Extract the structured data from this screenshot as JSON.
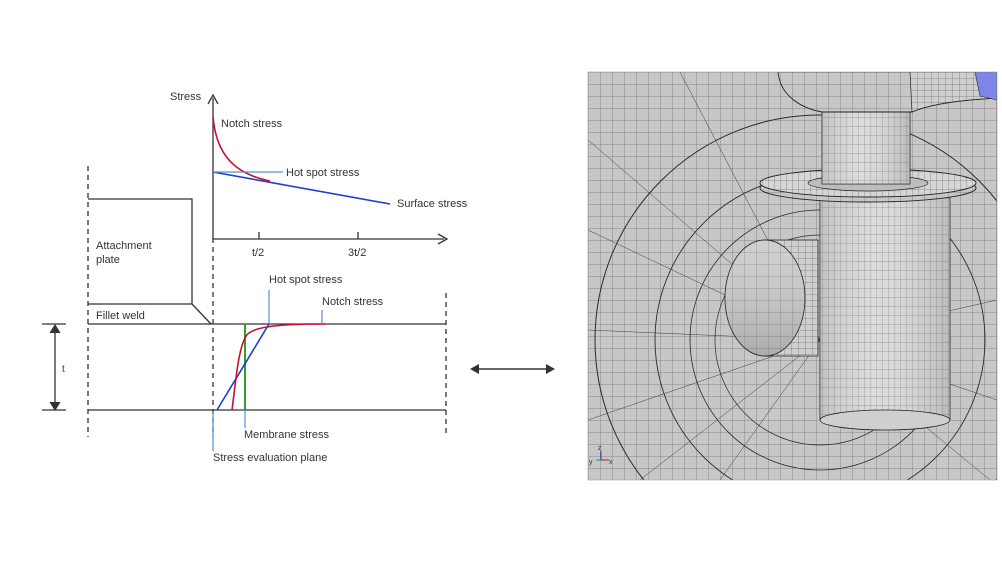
{
  "colors": {
    "notch": "#c8102e",
    "surface": "#1f3fd1",
    "hotspot_leader": "#5a8fd0",
    "membrane": "#2ea12e",
    "mesh_bg": "#c9c9c9",
    "mesh_line": "#3a3a3a"
  },
  "left_diagram": {
    "y_axis_label": "Stress",
    "curve_labels": {
      "notch_top": "Notch stress",
      "hot_spot_top": "Hot spot stress",
      "surface": "Surface stress",
      "hot_spot_bottom": "Hot spot stress",
      "notch_bottom": "Notch stress",
      "membrane": "Membrane stress",
      "evaluation_plane": "Stress evaluation plane"
    },
    "x_ticks": [
      "t/2",
      "3t/2"
    ],
    "part_labels": {
      "attachment_line1": "Attachment",
      "attachment_line2": "plate",
      "fillet_weld": "Fillet weld",
      "thickness": "t"
    }
  },
  "connector": {
    "arrow_icon": "double-headed-arrow-icon"
  },
  "right_image": {
    "description_icon": "fe-mesh-model-icon",
    "axis_triad": {
      "x": "x",
      "y": "y",
      "z": "z"
    }
  }
}
